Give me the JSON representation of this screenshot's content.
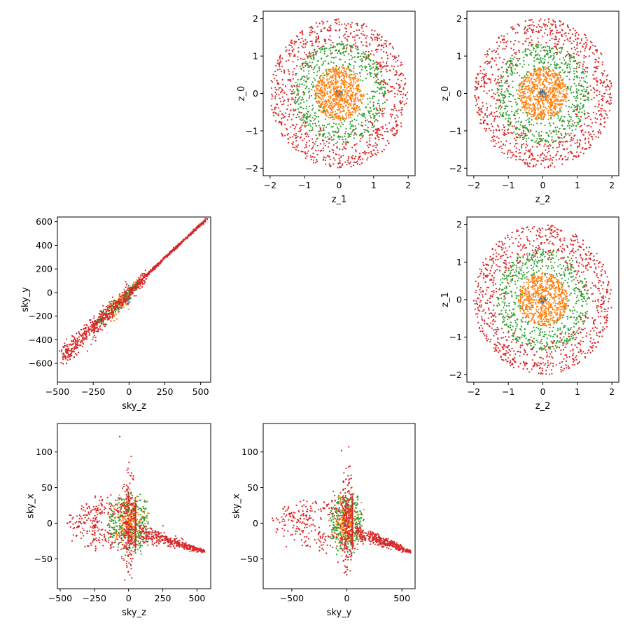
{
  "colors": {
    "blue": "#1f77b4",
    "orange": "#ff7f0e",
    "green": "#2ca02c",
    "red": "#d62728"
  },
  "chart_data": [
    {
      "id": "z1_vs_z0",
      "type": "scatter",
      "xlabel": "z_1",
      "ylabel": "z_0",
      "xlim": [
        -2.2,
        2.2
      ],
      "ylim": [
        -2.2,
        2.2
      ],
      "xticks": [
        -2,
        -1,
        0,
        1,
        2
      ],
      "yticks": [
        -2,
        -1,
        0,
        1,
        2
      ],
      "kind": "rings",
      "series": [
        {
          "color": "blue",
          "shell": [
            0.0,
            0.1
          ],
          "count": 40
        },
        {
          "color": "orange",
          "shell": [
            0.0,
            0.72
          ],
          "count": 700
        },
        {
          "color": "green",
          "shell": [
            0.6,
            1.35
          ],
          "count": 600
        },
        {
          "color": "red",
          "shell": [
            1.0,
            2.0
          ],
          "count": 900
        }
      ]
    },
    {
      "id": "z2_vs_z0",
      "type": "scatter",
      "xlabel": "z_2",
      "ylabel": "z_0",
      "xlim": [
        -2.2,
        2.2
      ],
      "ylim": [
        -2.2,
        2.2
      ],
      "xticks": [
        -2,
        -1,
        0,
        1,
        2
      ],
      "yticks": [
        -2,
        -1,
        0,
        1,
        2
      ],
      "kind": "rings",
      "series": [
        {
          "color": "blue",
          "shell": [
            0.0,
            0.1
          ],
          "count": 40
        },
        {
          "color": "orange",
          "shell": [
            0.0,
            0.72
          ],
          "count": 700
        },
        {
          "color": "green",
          "shell": [
            0.6,
            1.35
          ],
          "count": 600
        },
        {
          "color": "red",
          "shell": [
            1.0,
            2.0
          ],
          "count": 900
        }
      ]
    },
    {
      "id": "skyz_vs_skyy",
      "type": "scatter",
      "xlabel": "sky_z",
      "ylabel": "sky_y",
      "xlim": [
        -500,
        570
      ],
      "ylim": [
        -760,
        640
      ],
      "xticks": [
        -500,
        -250,
        0,
        250,
        500
      ],
      "yticks": [
        -600,
        -400,
        -200,
        0,
        200,
        400,
        600
      ],
      "kind": "diagonal",
      "series": [
        {
          "color": "blue",
          "count": 30,
          "range": [
            -20,
            20
          ]
        },
        {
          "color": "orange",
          "count": 200,
          "range": [
            -150,
            80
          ]
        },
        {
          "color": "green",
          "count": 150,
          "range": [
            -250,
            60
          ]
        },
        {
          "color": "red",
          "count": 1000,
          "range": [
            -470,
            545
          ]
        }
      ]
    },
    {
      "id": "z2_vs_z1",
      "type": "scatter",
      "xlabel": "z_2",
      "ylabel": "z_1",
      "xlim": [
        -2.2,
        2.2
      ],
      "ylim": [
        -2.2,
        2.2
      ],
      "xticks": [
        -2,
        -1,
        0,
        1,
        2
      ],
      "yticks": [
        -2,
        -1,
        0,
        1,
        2
      ],
      "kind": "rings",
      "series": [
        {
          "color": "blue",
          "shell": [
            0.0,
            0.1
          ],
          "count": 40
        },
        {
          "color": "orange",
          "shell": [
            0.0,
            0.72
          ],
          "count": 700
        },
        {
          "color": "green",
          "shell": [
            0.6,
            1.35
          ],
          "count": 600
        },
        {
          "color": "red",
          "shell": [
            1.0,
            2.0
          ],
          "count": 900
        }
      ]
    },
    {
      "id": "skyz_vs_skyx",
      "type": "scatter",
      "xlabel": "sky_z",
      "ylabel": "sky_x",
      "xlim": [
        -520,
        600
      ],
      "ylim": [
        -92,
        140
      ],
      "xticks": [
        -500,
        -250,
        0,
        250,
        500
      ],
      "yticks": [
        -50,
        0,
        50,
        100
      ],
      "kind": "sky",
      "series": [
        {
          "color": "blue",
          "count": 30
        },
        {
          "color": "orange",
          "count": 250
        },
        {
          "color": "green",
          "count": 250
        },
        {
          "color": "red",
          "count": 1000
        }
      ]
    },
    {
      "id": "skyy_vs_skyx",
      "type": "scatter",
      "xlabel": "sky_y",
      "ylabel": "sky_x",
      "xlim": [
        -760,
        620
      ],
      "ylim": [
        -92,
        140
      ],
      "xticks": [
        -500,
        0,
        500
      ],
      "yticks": [
        -50,
        0,
        50,
        100
      ],
      "kind": "sky",
      "series": [
        {
          "color": "blue",
          "count": 30
        },
        {
          "color": "orange",
          "count": 250
        },
        {
          "color": "green",
          "count": 250
        },
        {
          "color": "red",
          "count": 1000
        }
      ]
    }
  ]
}
